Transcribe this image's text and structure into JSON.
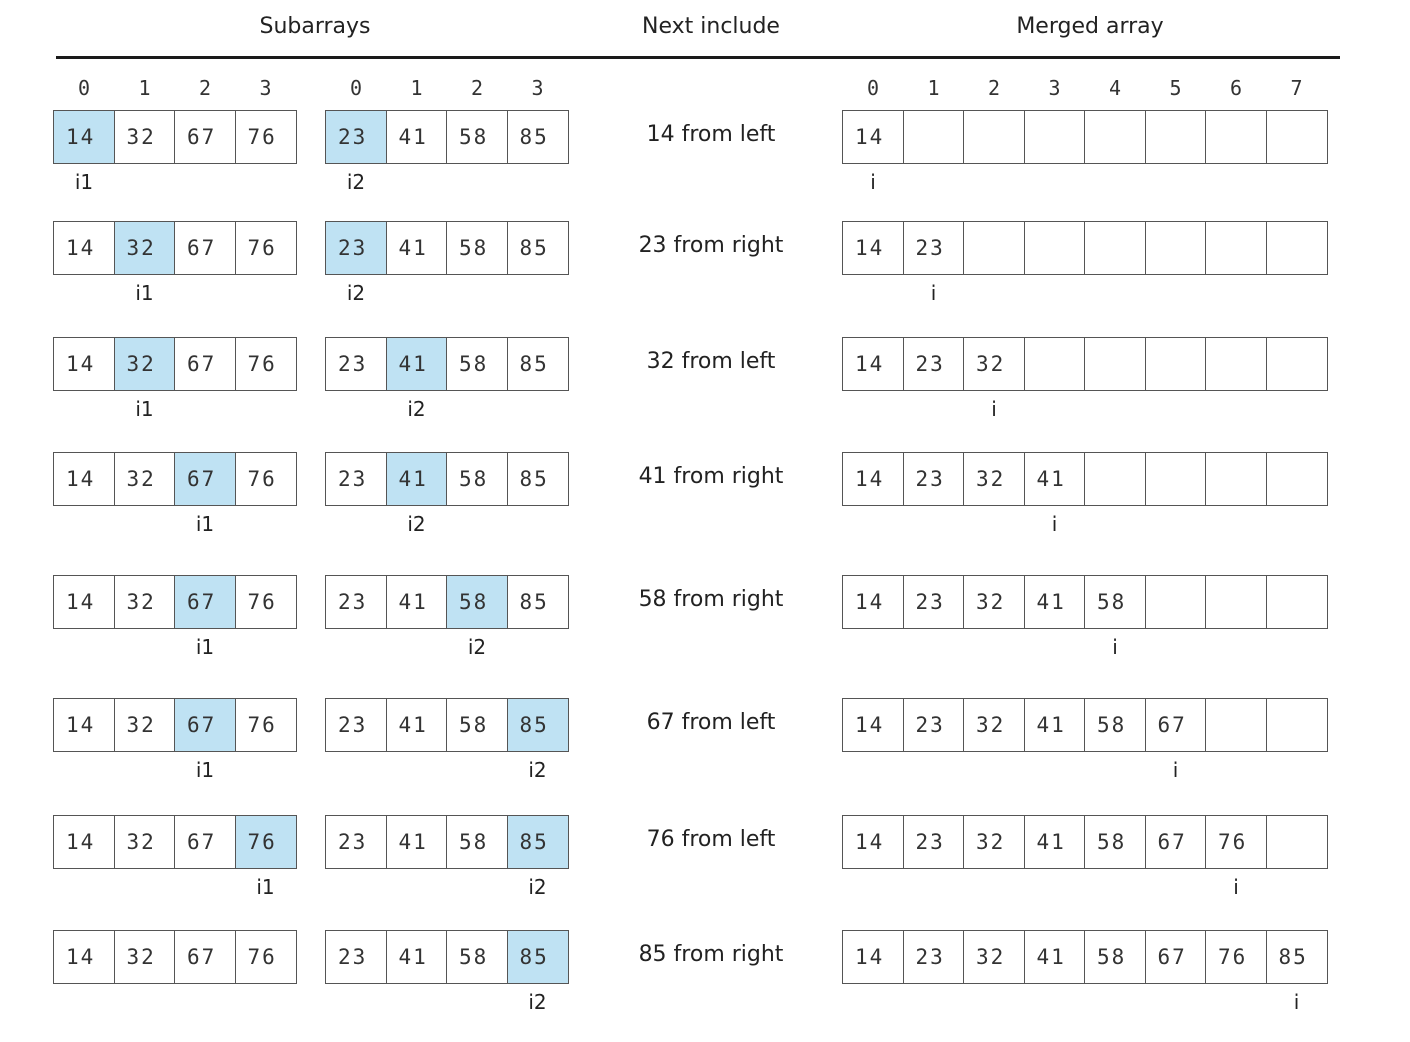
{
  "headers": {
    "subarrays": "Subarrays",
    "next_include": "Next include",
    "merged_array": "Merged array"
  },
  "index_labels": {
    "left": [
      "0",
      "1",
      "2",
      "3"
    ],
    "right": [
      "0",
      "1",
      "2",
      "3"
    ],
    "merged": [
      "0",
      "1",
      "2",
      "3",
      "4",
      "5",
      "6",
      "7"
    ]
  },
  "highlight_color": "#bfe2f3",
  "left_subarray": [
    "14",
    "32",
    "67",
    "76"
  ],
  "right_subarray": [
    "23",
    "41",
    "58",
    "85"
  ],
  "pointer_labels": {
    "i1": "i1",
    "i2": "i2",
    "i": "i"
  },
  "steps": [
    {
      "description": "14 from left",
      "i1": 0,
      "i2": 0,
      "merged": [
        "14",
        "",
        "",
        "",
        "",
        "",
        "",
        ""
      ],
      "i": 0
    },
    {
      "description": "23 from right",
      "i1": 1,
      "i2": 0,
      "merged": [
        "14",
        "23",
        "",
        "",
        "",
        "",
        "",
        ""
      ],
      "i": 1
    },
    {
      "description": "32 from left",
      "i1": 1,
      "i2": 1,
      "merged": [
        "14",
        "23",
        "32",
        "",
        "",
        "",
        "",
        ""
      ],
      "i": 2
    },
    {
      "description": "41 from right",
      "i1": 2,
      "i2": 1,
      "merged": [
        "14",
        "23",
        "32",
        "41",
        "",
        "",
        "",
        ""
      ],
      "i": 3
    },
    {
      "description": "58 from right",
      "i1": 2,
      "i2": 2,
      "merged": [
        "14",
        "23",
        "32",
        "41",
        "58",
        "",
        "",
        ""
      ],
      "i": 4
    },
    {
      "description": "67 from left",
      "i1": 2,
      "i2": 3,
      "merged": [
        "14",
        "23",
        "32",
        "41",
        "58",
        "67",
        "",
        ""
      ],
      "i": 5
    },
    {
      "description": "76 from left",
      "i1": 3,
      "i2": 3,
      "merged": [
        "14",
        "23",
        "32",
        "41",
        "58",
        "67",
        "76",
        ""
      ],
      "i": 6
    },
    {
      "description": "85 from right",
      "i1": null,
      "i2": 3,
      "merged": [
        "14",
        "23",
        "32",
        "41",
        "58",
        "67",
        "76",
        "85"
      ],
      "i": 7
    }
  ]
}
